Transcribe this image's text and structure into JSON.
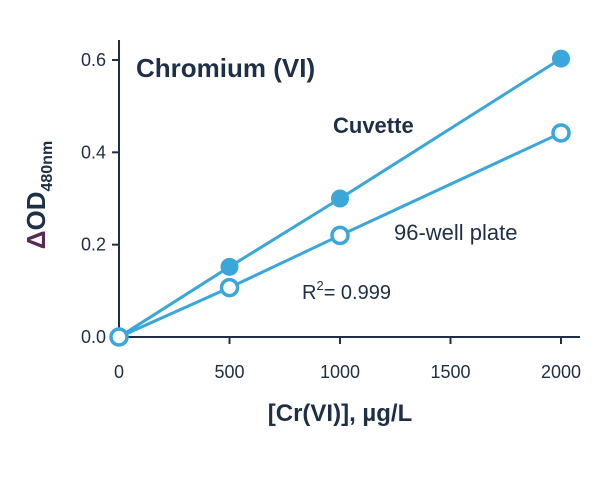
{
  "chart_data": {
    "type": "line",
    "title": "Chromium (VI)",
    "xlabel": "[Cr(VI)], µg/L",
    "ylabel": {
      "symbol": "Δ",
      "main": "OD",
      "subscript": "480nm"
    },
    "xlim": [
      0,
      2000
    ],
    "ylim": [
      0,
      0.6
    ],
    "x_ticks": [
      "0",
      "500",
      "1000",
      "1500",
      "2000"
    ],
    "y_ticks": [
      "0.0",
      "0.2",
      "0.4",
      "0.6"
    ],
    "x": [
      0,
      500,
      1000,
      2000
    ],
    "series": [
      {
        "name": "Cuvette",
        "values": [
          0,
          0.152,
          0.3,
          0.603
        ],
        "marker": "filled"
      },
      {
        "name": "96-well plate",
        "values": [
          0,
          0.107,
          0.22,
          0.442
        ],
        "marker": "open"
      }
    ],
    "annotation": {
      "r": "R",
      "sup": "2",
      "text": "= 0.999"
    },
    "grid": false,
    "colors": {
      "series": "#3aa6d9",
      "text": "#1f2f45",
      "ylabel_symbol": "#5a2a55"
    }
  }
}
